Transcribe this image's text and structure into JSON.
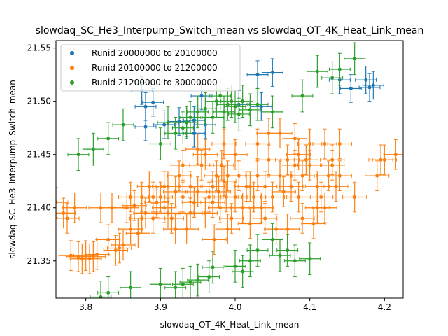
{
  "chart_data": {
    "type": "scatter",
    "title": "slowdaq_SC_He3_Interpump_Switch_mean vs slowdaq_OT_4K_Heat_Link_mean",
    "xlabel": "slowdaq_OT_4K_Heat_Link_mean",
    "ylabel": "slowdaq_SC_He3_Interpump_Switch_mean",
    "xlim": [
      3.76,
      4.225
    ],
    "ylim": [
      21.315,
      21.557
    ],
    "xticks": [
      "3.8",
      "3.9",
      "4.0",
      "4.1",
      "4.2"
    ],
    "yticks": [
      "21.35",
      "21.40",
      "21.45",
      "21.50",
      "21.55"
    ],
    "xtick_values": [
      3.8,
      3.9,
      4.0,
      4.1,
      4.2
    ],
    "ytick_values": [
      21.35,
      21.4,
      21.45,
      21.5,
      21.55
    ],
    "grid": false,
    "legend_position": "top-left",
    "error_bars": true,
    "series": [
      {
        "name": "Runid 20000000 to 20100000",
        "color": "#1f77b4",
        "xerr": 0.014,
        "yerr": 0.013,
        "points": [
          [
            3.88,
            21.495
          ],
          [
            3.88,
            21.476
          ],
          [
            3.89,
            21.499
          ],
          [
            3.905,
            21.478
          ],
          [
            3.925,
            21.481
          ],
          [
            3.935,
            21.48
          ],
          [
            3.945,
            21.47
          ],
          [
            3.955,
            21.505
          ],
          [
            4.005,
            21.497
          ],
          [
            4.03,
            21.525
          ],
          [
            4.05,
            21.527
          ],
          [
            4.035,
            21.495
          ],
          [
            4.14,
            21.52
          ],
          [
            4.155,
            21.512
          ],
          [
            4.175,
            21.52
          ],
          [
            4.18,
            21.513
          ],
          [
            4.185,
            21.515
          ],
          [
            3.96,
            21.478
          ],
          [
            3.945,
            21.482
          ],
          [
            3.875,
            21.51
          ]
        ]
      },
      {
        "name": "Runid 20100000 to 21200000",
        "color": "#ff7f0e",
        "xerr": 0.016,
        "yerr": 0.014,
        "points": [
          [
            3.76,
            21.405
          ],
          [
            3.77,
            21.395
          ],
          [
            3.775,
            21.39
          ],
          [
            3.78,
            21.355
          ],
          [
            3.785,
            21.4
          ],
          [
            3.79,
            21.354
          ],
          [
            3.795,
            21.352
          ],
          [
            3.8,
            21.355
          ],
          [
            3.805,
            21.352
          ],
          [
            3.81,
            21.354
          ],
          [
            3.815,
            21.356
          ],
          [
            3.82,
            21.4
          ],
          [
            3.83,
            21.37
          ],
          [
            3.835,
            21.4
          ],
          [
            3.84,
            21.36
          ],
          [
            3.845,
            21.362
          ],
          [
            3.85,
            21.365
          ],
          [
            3.855,
            21.4
          ],
          [
            3.86,
            21.38
          ],
          [
            3.865,
            21.402
          ],
          [
            3.87,
            21.376
          ],
          [
            3.875,
            21.41
          ],
          [
            3.88,
            21.395
          ],
          [
            3.885,
            21.42
          ],
          [
            3.89,
            21.39
          ],
          [
            3.895,
            21.405
          ],
          [
            3.9,
            21.41
          ],
          [
            3.905,
            21.4
          ],
          [
            3.91,
            21.42
          ],
          [
            3.915,
            21.39
          ],
          [
            3.92,
            21.415
          ],
          [
            3.925,
            21.43
          ],
          [
            3.93,
            21.41
          ],
          [
            3.935,
            21.38
          ],
          [
            3.94,
            21.42
          ],
          [
            3.945,
            21.405
          ],
          [
            3.95,
            21.415
          ],
          [
            3.955,
            21.44
          ],
          [
            3.96,
            21.395
          ],
          [
            3.965,
            21.41
          ],
          [
            3.97,
            21.42
          ],
          [
            3.972,
            21.37
          ],
          [
            3.975,
            21.43
          ],
          [
            3.978,
            21.415
          ],
          [
            3.98,
            21.4
          ],
          [
            3.982,
            21.44
          ],
          [
            3.985,
            21.425
          ],
          [
            3.988,
            21.41
          ],
          [
            3.99,
            21.38
          ],
          [
            3.995,
            21.39
          ],
          [
            4.0,
            21.41
          ],
          [
            4.005,
            21.43
          ],
          [
            4.01,
            21.4
          ],
          [
            4.015,
            21.42
          ],
          [
            4.02,
            21.385
          ],
          [
            4.025,
            21.41
          ],
          [
            4.03,
            21.43
          ],
          [
            4.035,
            21.4
          ],
          [
            4.04,
            21.42
          ],
          [
            4.045,
            21.445
          ],
          [
            4.05,
            21.41
          ],
          [
            4.055,
            21.38
          ],
          [
            4.06,
            21.43
          ],
          [
            4.065,
            21.415
          ],
          [
            4.07,
            21.445
          ],
          [
            4.075,
            21.42
          ],
          [
            4.08,
            21.44
          ],
          [
            4.085,
            21.45
          ],
          [
            4.09,
            21.43
          ],
          [
            4.095,
            21.445
          ],
          [
            4.1,
            21.44
          ],
          [
            4.105,
            21.385
          ],
          [
            4.11,
            21.42
          ],
          [
            4.115,
            21.41
          ],
          [
            4.12,
            21.4
          ],
          [
            4.125,
            21.43
          ],
          [
            4.13,
            21.445
          ],
          [
            4.135,
            21.42
          ],
          [
            4.14,
            21.43
          ],
          [
            4.16,
            21.41
          ],
          [
            4.19,
            21.43
          ],
          [
            4.195,
            21.445
          ],
          [
            4.2,
            21.445
          ],
          [
            4.215,
            21.45
          ],
          [
            4.08,
            21.465
          ],
          [
            4.1,
            21.46
          ],
          [
            4.12,
            21.46
          ],
          [
            4.06,
            21.47
          ],
          [
            4.03,
            21.46
          ],
          [
            4.045,
            21.47
          ],
          [
            4.0,
            21.45
          ],
          [
            3.96,
            21.45
          ],
          [
            3.93,
            21.44
          ],
          [
            3.95,
            21.455
          ],
          [
            3.985,
            21.46
          ],
          [
            4.02,
            21.42
          ],
          [
            3.99,
            21.43
          ],
          [
            3.97,
            21.405
          ],
          [
            3.94,
            21.395
          ],
          [
            3.91,
            21.395
          ],
          [
            3.86,
            21.41
          ],
          [
            3.875,
            21.39
          ],
          [
            3.89,
            21.41
          ],
          [
            3.905,
            21.42
          ],
          [
            3.92,
            21.38
          ],
          [
            4.04,
            21.39
          ],
          [
            4.07,
            21.38
          ],
          [
            4.09,
            21.39
          ],
          [
            4.11,
            21.4
          ],
          [
            4.13,
            21.44
          ],
          [
            4.14,
            21.46
          ],
          [
            4.085,
            21.41
          ]
        ]
      },
      {
        "name": "Runid 21200000 to 30000000",
        "color": "#2ca02c",
        "xerr": 0.014,
        "yerr": 0.015,
        "points": [
          [
            3.79,
            21.45
          ],
          [
            3.81,
            21.455
          ],
          [
            3.83,
            21.465
          ],
          [
            3.85,
            21.478
          ],
          [
            3.82,
            21.316
          ],
          [
            3.83,
            21.32
          ],
          [
            3.86,
            21.325
          ],
          [
            3.9,
            21.328
          ],
          [
            3.92,
            21.325
          ],
          [
            3.93,
            21.328
          ],
          [
            3.94,
            21.33
          ],
          [
            3.95,
            21.332
          ],
          [
            3.9,
            21.46
          ],
          [
            3.91,
            21.48
          ],
          [
            3.92,
            21.47
          ],
          [
            3.93,
            21.475
          ],
          [
            3.935,
            21.48
          ],
          [
            3.94,
            21.485
          ],
          [
            3.95,
            21.49
          ],
          [
            3.96,
            21.493
          ],
          [
            3.97,
            21.485
          ],
          [
            3.975,
            21.5
          ],
          [
            3.98,
            21.505
          ],
          [
            3.985,
            21.49
          ],
          [
            3.99,
            21.497
          ],
          [
            3.995,
            21.5
          ],
          [
            4.0,
            21.495
          ],
          [
            4.005,
            21.488
          ],
          [
            4.01,
            21.5
          ],
          [
            4.02,
            21.492
          ],
          [
            4.03,
            21.497
          ],
          [
            4.05,
            21.49
          ],
          [
            4.09,
            21.505
          ],
          [
            4.11,
            21.528
          ],
          [
            4.13,
            21.522
          ],
          [
            4.14,
            21.53
          ],
          [
            4.16,
            21.54
          ],
          [
            3.97,
            21.344
          ],
          [
            4.0,
            21.345
          ],
          [
            4.02,
            21.35
          ],
          [
            4.03,
            21.36
          ],
          [
            4.06,
            21.355
          ],
          [
            4.07,
            21.36
          ],
          [
            4.08,
            21.35
          ],
          [
            4.1,
            21.352
          ],
          [
            4.01,
            21.34
          ],
          [
            3.965,
            21.335
          ],
          [
            4.05,
            21.37
          ]
        ]
      }
    ]
  }
}
